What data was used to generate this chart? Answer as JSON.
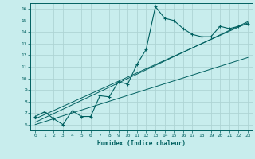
{
  "xlabel": "Humidex (Indice chaleur)",
  "bg_color": "#c8eded",
  "grid_color": "#aed4d4",
  "line_color": "#006060",
  "xlim": [
    -0.5,
    23.5
  ],
  "ylim": [
    5.5,
    16.5
  ],
  "xticks": [
    0,
    1,
    2,
    3,
    4,
    5,
    6,
    7,
    8,
    9,
    10,
    11,
    12,
    13,
    14,
    15,
    16,
    17,
    18,
    19,
    20,
    21,
    22,
    23
  ],
  "yticks": [
    6,
    7,
    8,
    9,
    10,
    11,
    12,
    13,
    14,
    15,
    16
  ],
  "curve_x": [
    0,
    1,
    2,
    3,
    4,
    5,
    6,
    7,
    8,
    9,
    10,
    11,
    12,
    13,
    14,
    15,
    16,
    17,
    18,
    19,
    20,
    21,
    22,
    23
  ],
  "curve_y": [
    6.7,
    7.1,
    6.5,
    6.0,
    7.2,
    6.7,
    6.7,
    8.5,
    8.4,
    9.7,
    9.5,
    11.2,
    12.5,
    16.2,
    15.2,
    15.0,
    14.3,
    13.8,
    13.6,
    13.6,
    14.5,
    14.3,
    14.5,
    14.7
  ],
  "line1_x": [
    0,
    23
  ],
  "line1_y": [
    6.5,
    14.8
  ],
  "line2_x": [
    0,
    23
  ],
  "line2_y": [
    6.2,
    14.9
  ],
  "line3_x": [
    0,
    23
  ],
  "line3_y": [
    6.0,
    11.8
  ]
}
